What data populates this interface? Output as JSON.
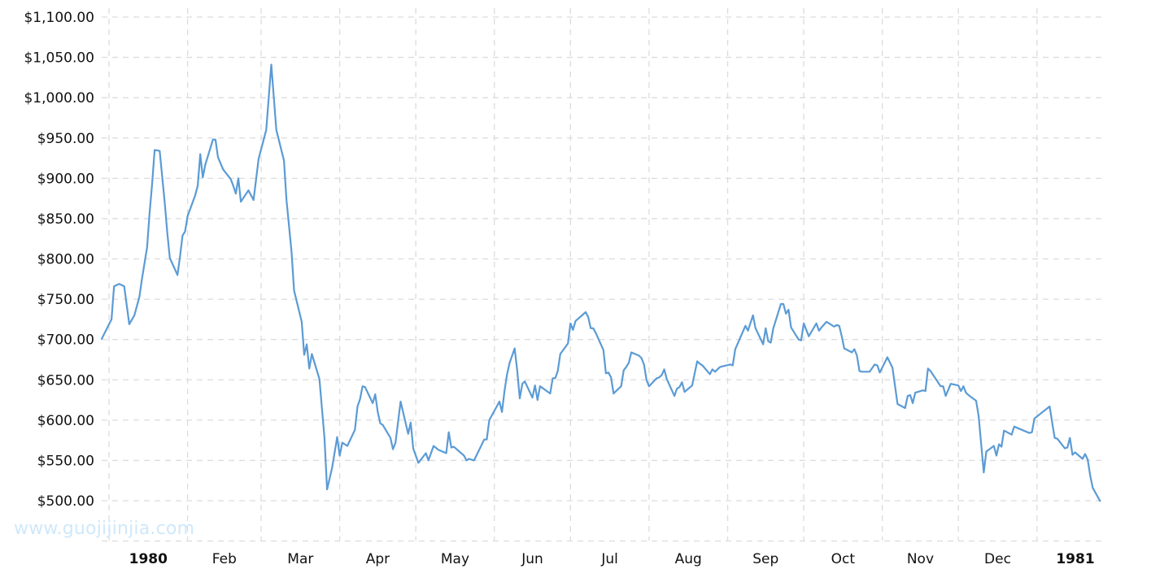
{
  "watermark": "www.guojijinjia.com",
  "chart_data": {
    "type": "line",
    "title": "",
    "xlabel": "",
    "ylabel": "",
    "ylim": [
      450,
      1100
    ],
    "xlim": [
      "1979-12-29",
      "1981-01-26"
    ],
    "grid": true,
    "line_color": "#5b9bd5",
    "y_ticks": [
      {
        "value": 1100,
        "label": "$1,100.00"
      },
      {
        "value": 1050,
        "label": "$1,050.00"
      },
      {
        "value": 1000,
        "label": "$1,000.00"
      },
      {
        "value": 950,
        "label": "$950.00"
      },
      {
        "value": 900,
        "label": "$900.00"
      },
      {
        "value": 850,
        "label": "$850.00"
      },
      {
        "value": 800,
        "label": "$800.00"
      },
      {
        "value": 750,
        "label": "$750.00"
      },
      {
        "value": 700,
        "label": "$700.00"
      },
      {
        "value": 650,
        "label": "$650.00"
      },
      {
        "value": 600,
        "label": "$600.00"
      },
      {
        "value": 550,
        "label": "$550.00"
      },
      {
        "value": 500,
        "label": "$500.00"
      }
    ],
    "x_ticks": [
      {
        "date": "1980-01-01",
        "label": "1980",
        "bold": true
      },
      {
        "date": "1980-02-01",
        "label": "Feb"
      },
      {
        "date": "1980-03-01",
        "label": "Mar"
      },
      {
        "date": "1980-04-01",
        "label": "Apr"
      },
      {
        "date": "1980-05-01",
        "label": "May"
      },
      {
        "date": "1980-06-01",
        "label": "Jun"
      },
      {
        "date": "1980-07-01",
        "label": "Jul"
      },
      {
        "date": "1980-08-01",
        "label": "Aug"
      },
      {
        "date": "1980-09-01",
        "label": "Sep"
      },
      {
        "date": "1980-10-01",
        "label": "Oct"
      },
      {
        "date": "1980-11-01",
        "label": "Nov"
      },
      {
        "date": "1980-12-01",
        "label": "Dec"
      },
      {
        "date": "1981-01-01",
        "label": "1981",
        "bold": true
      }
    ],
    "series": [
      {
        "points": [
          [
            "1979-12-29",
            700
          ],
          [
            "1980-01-02",
            725
          ],
          [
            "1980-01-03",
            766
          ],
          [
            "1980-01-05",
            769
          ],
          [
            "1980-01-07",
            766
          ],
          [
            "1980-01-09",
            719
          ],
          [
            "1980-01-11",
            730
          ],
          [
            "1980-01-13",
            753
          ],
          [
            "1980-01-14",
            775
          ],
          [
            "1980-01-16",
            814
          ],
          [
            "1980-01-17",
            857
          ],
          [
            "1980-01-18",
            893
          ],
          [
            "1980-01-19",
            935
          ],
          [
            "1980-01-21",
            934
          ],
          [
            "1980-01-23",
            869
          ],
          [
            "1980-01-24",
            832
          ],
          [
            "1980-01-25",
            801
          ],
          [
            "1980-01-28",
            780
          ],
          [
            "1980-01-29",
            803
          ],
          [
            "1980-01-30",
            829
          ],
          [
            "1980-01-31",
            834
          ],
          [
            "1980-02-01",
            853
          ],
          [
            "1980-02-04",
            879
          ],
          [
            "1980-02-05",
            891
          ],
          [
            "1980-02-06",
            930
          ],
          [
            "1980-02-07",
            901
          ],
          [
            "1980-02-08",
            917
          ],
          [
            "1980-02-11",
            948
          ],
          [
            "1980-02-12",
            948
          ],
          [
            "1980-02-13",
            926
          ],
          [
            "1980-02-15",
            911
          ],
          [
            "1980-02-18",
            899
          ],
          [
            "1980-02-19",
            891
          ],
          [
            "1980-02-20",
            881
          ],
          [
            "1980-02-21",
            900
          ],
          [
            "1980-02-22",
            871
          ],
          [
            "1980-02-25",
            885
          ],
          [
            "1980-02-27",
            873
          ],
          [
            "1980-02-29",
            924
          ],
          [
            "1980-03-03",
            960
          ],
          [
            "1980-03-05",
            1041
          ],
          [
            "1980-03-07",
            960
          ],
          [
            "1980-03-10",
            922
          ],
          [
            "1980-03-11",
            873
          ],
          [
            "1980-03-13",
            809
          ],
          [
            "1980-03-14",
            761
          ],
          [
            "1980-03-17",
            722
          ],
          [
            "1980-03-18",
            681
          ],
          [
            "1980-03-19",
            694
          ],
          [
            "1980-03-20",
            664
          ],
          [
            "1980-03-21",
            682
          ],
          [
            "1980-03-24",
            651
          ],
          [
            "1980-03-26",
            578
          ],
          [
            "1980-03-27",
            514
          ],
          [
            "1980-03-29",
            541
          ],
          [
            "1980-03-31",
            579
          ],
          [
            "1980-04-01",
            556
          ],
          [
            "1980-04-02",
            572
          ],
          [
            "1980-04-04",
            568
          ],
          [
            "1980-04-07",
            588
          ],
          [
            "1980-04-08",
            617
          ],
          [
            "1980-04-09",
            626
          ],
          [
            "1980-04-10",
            642
          ],
          [
            "1980-04-11",
            641
          ],
          [
            "1980-04-14",
            621
          ],
          [
            "1980-04-15",
            632
          ],
          [
            "1980-04-16",
            610
          ],
          [
            "1980-04-17",
            596
          ],
          [
            "1980-04-18",
            594
          ],
          [
            "1980-04-21",
            578
          ],
          [
            "1980-04-22",
            564
          ],
          [
            "1980-04-23",
            572
          ],
          [
            "1980-04-25",
            623
          ],
          [
            "1980-04-28",
            583
          ],
          [
            "1980-04-29",
            597
          ],
          [
            "1980-04-30",
            565
          ],
          [
            "1980-05-02",
            547
          ],
          [
            "1980-05-05",
            559
          ],
          [
            "1980-05-06",
            550
          ],
          [
            "1980-05-08",
            568
          ],
          [
            "1980-05-10",
            563
          ],
          [
            "1980-05-13",
            559
          ],
          [
            "1980-05-14",
            585
          ],
          [
            "1980-05-15",
            566
          ],
          [
            "1980-05-16",
            567
          ],
          [
            "1980-05-20",
            556
          ],
          [
            "1980-05-21",
            550
          ],
          [
            "1980-05-22",
            552
          ],
          [
            "1980-05-24",
            550
          ],
          [
            "1980-05-28",
            576
          ],
          [
            "1980-05-29",
            576
          ],
          [
            "1980-05-30",
            600
          ],
          [
            "1980-06-03",
            623
          ],
          [
            "1980-06-04",
            610
          ],
          [
            "1980-06-05",
            637
          ],
          [
            "1980-06-06",
            657
          ],
          [
            "1980-06-07",
            671
          ],
          [
            "1980-06-09",
            689
          ],
          [
            "1980-06-10",
            662
          ],
          [
            "1980-06-11",
            627
          ],
          [
            "1980-06-12",
            645
          ],
          [
            "1980-06-13",
            648
          ],
          [
            "1980-06-16",
            628
          ],
          [
            "1980-06-17",
            643
          ],
          [
            "1980-06-18",
            625
          ],
          [
            "1980-06-19",
            642
          ],
          [
            "1980-06-23",
            633
          ],
          [
            "1980-06-24",
            652
          ],
          [
            "1980-06-25",
            652
          ],
          [
            "1980-06-26",
            661
          ],
          [
            "1980-06-27",
            682
          ],
          [
            "1980-06-30",
            695
          ],
          [
            "1980-07-01",
            720
          ],
          [
            "1980-07-02",
            712
          ],
          [
            "1980-07-03",
            723
          ],
          [
            "1980-07-07",
            734
          ],
          [
            "1980-07-08",
            728
          ],
          [
            "1980-07-09",
            714
          ],
          [
            "1980-07-10",
            714
          ],
          [
            "1980-07-11",
            708
          ],
          [
            "1980-07-14",
            687
          ],
          [
            "1980-07-15",
            658
          ],
          [
            "1980-07-16",
            659
          ],
          [
            "1980-07-17",
            653
          ],
          [
            "1980-07-18",
            633
          ],
          [
            "1980-07-21",
            642
          ],
          [
            "1980-07-22",
            662
          ],
          [
            "1980-07-23",
            666
          ],
          [
            "1980-07-24",
            671
          ],
          [
            "1980-07-25",
            684
          ],
          [
            "1980-07-28",
            680
          ],
          [
            "1980-07-29",
            677
          ],
          [
            "1980-07-30",
            669
          ],
          [
            "1980-07-31",
            650
          ],
          [
            "1980-08-01",
            642
          ],
          [
            "1980-08-04",
            652
          ],
          [
            "1980-08-05",
            653
          ],
          [
            "1980-08-06",
            656
          ],
          [
            "1980-08-07",
            663
          ],
          [
            "1980-08-08",
            651
          ],
          [
            "1980-08-11",
            630
          ],
          [
            "1980-08-12",
            639
          ],
          [
            "1980-08-13",
            641
          ],
          [
            "1980-08-14",
            647
          ],
          [
            "1980-08-15",
            635
          ],
          [
            "1980-08-18",
            643
          ],
          [
            "1980-08-20",
            673
          ],
          [
            "1980-08-21",
            670
          ],
          [
            "1980-08-22",
            668
          ],
          [
            "1980-08-25",
            657
          ],
          [
            "1980-08-26",
            663
          ],
          [
            "1980-08-27",
            660
          ],
          [
            "1980-08-29",
            666
          ],
          [
            "1980-09-02",
            669
          ],
          [
            "1980-09-03",
            668
          ],
          [
            "1980-09-04",
            688
          ],
          [
            "1980-09-08",
            717
          ],
          [
            "1980-09-09",
            711
          ],
          [
            "1980-09-11",
            730
          ],
          [
            "1980-09-12",
            714
          ],
          [
            "1980-09-15",
            694
          ],
          [
            "1980-09-16",
            714
          ],
          [
            "1980-09-17",
            698
          ],
          [
            "1980-09-18",
            696
          ],
          [
            "1980-09-19",
            714
          ],
          [
            "1980-09-22",
            744
          ],
          [
            "1980-09-23",
            744
          ],
          [
            "1980-09-24",
            732
          ],
          [
            "1980-09-25",
            737
          ],
          [
            "1980-09-26",
            715
          ],
          [
            "1980-09-29",
            700
          ],
          [
            "1980-09-30",
            699
          ],
          [
            "1980-10-01",
            720
          ],
          [
            "1980-10-03",
            704
          ],
          [
            "1980-10-06",
            720
          ],
          [
            "1980-10-07",
            711
          ],
          [
            "1980-10-08",
            715
          ],
          [
            "1980-10-10",
            722
          ],
          [
            "1980-10-13",
            716
          ],
          [
            "1980-10-14",
            718
          ],
          [
            "1980-10-15",
            717
          ],
          [
            "1980-10-16",
            704
          ],
          [
            "1980-10-17",
            689
          ],
          [
            "1980-10-20",
            684
          ],
          [
            "1980-10-21",
            688
          ],
          [
            "1980-10-22",
            680
          ],
          [
            "1980-10-23",
            661
          ],
          [
            "1980-10-24",
            660
          ],
          [
            "1980-10-27",
            660
          ],
          [
            "1980-10-29",
            669
          ],
          [
            "1980-10-30",
            668
          ],
          [
            "1980-10-31",
            659
          ],
          [
            "1980-11-03",
            678
          ],
          [
            "1980-11-05",
            665
          ],
          [
            "1980-11-07",
            620
          ],
          [
            "1980-11-10",
            615
          ],
          [
            "1980-11-11",
            630
          ],
          [
            "1980-11-12",
            631
          ],
          [
            "1980-11-13",
            621
          ],
          [
            "1980-11-14",
            634
          ],
          [
            "1980-11-17",
            637
          ],
          [
            "1980-11-18",
            636
          ],
          [
            "1980-11-19",
            664
          ],
          [
            "1980-11-20",
            661
          ],
          [
            "1980-11-24",
            642
          ],
          [
            "1980-11-25",
            642
          ],
          [
            "1980-11-26",
            630
          ],
          [
            "1980-11-28",
            645
          ],
          [
            "1980-12-01",
            643
          ],
          [
            "1980-12-02",
            636
          ],
          [
            "1980-12-03",
            642
          ],
          [
            "1980-12-04",
            634
          ],
          [
            "1980-12-05",
            631
          ],
          [
            "1980-12-08",
            624
          ],
          [
            "1980-12-09",
            605
          ],
          [
            "1980-12-11",
            535
          ],
          [
            "1980-12-12",
            561
          ],
          [
            "1980-12-15",
            568
          ],
          [
            "1980-12-16",
            556
          ],
          [
            "1980-12-17",
            570
          ],
          [
            "1980-12-18",
            567
          ],
          [
            "1980-12-19",
            587
          ],
          [
            "1980-12-22",
            582
          ],
          [
            "1980-12-23",
            592
          ],
          [
            "1980-12-29",
            584
          ],
          [
            "1980-12-30",
            585
          ],
          [
            "1980-12-31",
            602
          ],
          [
            "1981-01-06",
            617
          ],
          [
            "1981-01-07",
            597
          ],
          [
            "1981-01-08",
            578
          ],
          [
            "1981-01-09",
            577
          ],
          [
            "1981-01-12",
            565
          ],
          [
            "1981-01-13",
            566
          ],
          [
            "1981-01-14",
            578
          ],
          [
            "1981-01-15",
            557
          ],
          [
            "1981-01-16",
            560
          ],
          [
            "1981-01-19",
            552
          ],
          [
            "1981-01-20",
            558
          ],
          [
            "1981-01-21",
            551
          ],
          [
            "1981-01-22",
            531
          ],
          [
            "1981-01-23",
            516
          ],
          [
            "1981-01-26",
            499
          ]
        ]
      }
    ]
  }
}
